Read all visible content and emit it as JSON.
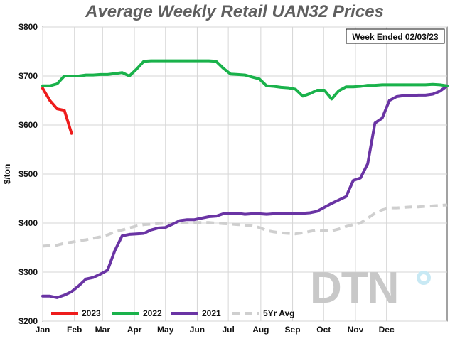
{
  "chart_data": {
    "type": "line",
    "title": "Average Weekly Retail UAN32 Prices",
    "ylabel": "$/ton",
    "xlabel": "",
    "ylim": [
      200,
      800
    ],
    "yticks": [
      200,
      300,
      400,
      500,
      600,
      700,
      800
    ],
    "ytick_labels": [
      "$200",
      "$300",
      "$400",
      "$500",
      "$600",
      "$700",
      "$800"
    ],
    "x_domain_weeks": [
      0,
      56
    ],
    "x_ticks": [
      {
        "label": "Jan",
        "week": 0
      },
      {
        "label": "Feb",
        "week": 4.4
      },
      {
        "label": "Mar",
        "week": 8.3
      },
      {
        "label": "Apr",
        "week": 12.7
      },
      {
        "label": "May",
        "week": 17
      },
      {
        "label": "Jun",
        "week": 21.4
      },
      {
        "label": "Jul",
        "week": 25.7
      },
      {
        "label": "Aug",
        "week": 30.2
      },
      {
        "label": "Sep",
        "week": 34.6
      },
      {
        "label": "Oct",
        "week": 38.9
      },
      {
        "label": "Nov",
        "week": 43.3
      },
      {
        "label": "Dec",
        "week": 47.6
      }
    ],
    "grid": true,
    "legend_position": "bottom-left",
    "annotation": "Week Ended 02/03/23",
    "logo": "DTN",
    "series": [
      {
        "name": "2023",
        "color": "#ee1c1c",
        "dashed": false,
        "x": [
          0,
          1,
          2,
          3,
          4
        ],
        "y": [
          675,
          650,
          633,
          630,
          583
        ]
      },
      {
        "name": "2022",
        "color": "#1ab24b",
        "dashed": false,
        "x": [
          0,
          1,
          2,
          3,
          4,
          5,
          6,
          7,
          8,
          9,
          10,
          11,
          12,
          13,
          14,
          15,
          16,
          17,
          18,
          19,
          20,
          21,
          22,
          23,
          24,
          25,
          26,
          27,
          28,
          29,
          30,
          31,
          32,
          33,
          34,
          35,
          36,
          37,
          38,
          39,
          40,
          41,
          42,
          43,
          44,
          45,
          46,
          47,
          48,
          49,
          50,
          51,
          52,
          53,
          54,
          55,
          56
        ],
        "y": [
          680,
          680,
          684,
          700,
          700,
          700,
          702,
          702,
          703,
          703,
          705,
          707,
          700,
          714,
          730,
          731,
          731,
          731,
          731,
          731,
          731,
          731,
          731,
          731,
          730,
          716,
          704,
          703,
          702,
          698,
          694,
          680,
          679,
          677,
          676,
          673,
          659,
          664,
          671,
          671,
          653,
          670,
          678,
          678,
          679,
          681,
          681,
          682,
          682,
          682,
          682,
          682,
          682,
          682,
          683,
          682,
          680
        ]
      },
      {
        "name": "2021",
        "color": "#6a34a4",
        "dashed": false,
        "x": [
          0,
          1,
          2,
          3,
          4,
          5,
          6,
          7,
          8,
          9,
          10,
          11,
          12,
          13,
          14,
          15,
          16,
          17,
          18,
          19,
          20,
          21,
          22,
          23,
          24,
          25,
          26,
          27,
          28,
          29,
          30,
          31,
          32,
          33,
          34,
          35,
          36,
          37,
          38,
          39,
          40,
          41,
          42,
          43,
          44,
          45,
          46,
          47,
          48,
          49,
          50,
          51,
          52,
          53,
          54,
          55,
          56
        ],
        "y": [
          251,
          251,
          248,
          253,
          260,
          272,
          286,
          289,
          296,
          304,
          344,
          374,
          377,
          378,
          379,
          386,
          390,
          391,
          398,
          405,
          407,
          407,
          410,
          413,
          414,
          419,
          420,
          420,
          418,
          419,
          419,
          418,
          419,
          419,
          419,
          419,
          420,
          421,
          424,
          432,
          440,
          447,
          454,
          487,
          492,
          521,
          604,
          614,
          650,
          658,
          660,
          660,
          661,
          661,
          663,
          669,
          680
        ]
      },
      {
        "name": "5Yr Avg",
        "color": "#cfcfcf",
        "dashed": true,
        "x": [
          0,
          1,
          2,
          3,
          4,
          5,
          6,
          7,
          8,
          9,
          10,
          11,
          12,
          13,
          14,
          15,
          16,
          17,
          18,
          19,
          20,
          21,
          22,
          23,
          24,
          25,
          26,
          27,
          28,
          29,
          30,
          31,
          32,
          33,
          34,
          35,
          36,
          37,
          38,
          39,
          40,
          41,
          42,
          43,
          44,
          45,
          46,
          47,
          48,
          49,
          50,
          51,
          52,
          53,
          54,
          55,
          56
        ],
        "y": [
          353,
          354,
          355,
          359,
          361,
          364,
          366,
          369,
          372,
          376,
          382,
          386,
          390,
          394,
          397,
          398,
          399,
          400,
          400,
          400,
          400,
          401,
          401,
          401,
          400,
          399,
          398,
          397,
          396,
          394,
          391,
          385,
          382,
          380,
          379,
          378,
          380,
          383,
          386,
          385,
          384,
          388,
          393,
          397,
          400,
          410,
          420,
          427,
          431,
          431,
          432,
          433,
          433,
          434,
          435,
          436,
          437
        ]
      }
    ]
  }
}
